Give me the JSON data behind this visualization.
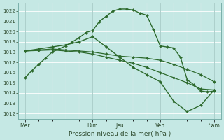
{
  "xlabel": "Pression niveau de la mer( hPa )",
  "ylim": [
    1011.5,
    1022.8
  ],
  "yticks": [
    1012,
    1013,
    1014,
    1015,
    1016,
    1017,
    1018,
    1019,
    1020,
    1021,
    1022
  ],
  "xtick_labels": [
    "Mer",
    "",
    "Dim",
    "Jeu",
    "",
    "Ven",
    "",
    "Sam"
  ],
  "xtick_major_labels": [
    "Mer",
    "Dim",
    "Jeu",
    "Ven",
    "Sam"
  ],
  "xtick_major_positions": [
    0,
    5,
    7,
    10,
    14
  ],
  "bg_color": "#c5e8e4",
  "grid_color": "#ffffff",
  "line_color": "#2d6a2d",
  "series1_x": [
    0,
    0.5,
    1,
    1.5,
    2,
    2.5,
    3,
    3.5,
    4,
    4.5,
    5,
    5.5,
    6,
    6.5,
    7,
    7.5,
    8,
    8.5,
    9,
    9.5,
    10,
    10.5,
    11,
    11.5,
    12,
    12.5,
    13,
    13.5,
    14
  ],
  "series1_y": [
    1015.5,
    1016.2,
    1016.8,
    1017.4,
    1018.0,
    1018.3,
    1018.6,
    1019.0,
    1019.4,
    1019.9,
    1020.1,
    1021.0,
    1021.5,
    1022.0,
    1022.2,
    1022.2,
    1022.1,
    1021.8,
    1021.6,
    1020.2,
    1018.6,
    1018.5,
    1018.4,
    1017.5,
    1015.3,
    1014.8,
    1014.2,
    1014.1,
    1014.2
  ],
  "series2_x": [
    0,
    1,
    2,
    3,
    4,
    5,
    6,
    7,
    8,
    9,
    10,
    11,
    12,
    13,
    14
  ],
  "series2_y": [
    1018.1,
    1018.2,
    1018.3,
    1018.2,
    1018.1,
    1018.0,
    1017.8,
    1017.6,
    1017.5,
    1017.4,
    1017.2,
    1016.8,
    1016.3,
    1015.8,
    1015.1
  ],
  "series3_x": [
    0,
    1,
    2,
    3,
    4,
    5,
    6,
    7,
    8,
    9,
    10,
    11,
    12,
    13,
    14
  ],
  "series3_y": [
    1018.1,
    1018.15,
    1018.2,
    1018.1,
    1018.0,
    1017.8,
    1017.5,
    1017.2,
    1016.9,
    1016.5,
    1016.0,
    1015.5,
    1015.0,
    1014.4,
    1014.3
  ],
  "series4_x": [
    0,
    1,
    2,
    3,
    4,
    5,
    6,
    7,
    8,
    9,
    10,
    11,
    12,
    13,
    14
  ],
  "series4_y": [
    1018.1,
    1018.3,
    1018.5,
    1018.7,
    1019.0,
    1019.5,
    1018.5,
    1017.5,
    1016.5,
    1015.8,
    1015.1,
    1013.2,
    1012.2,
    1012.8,
    1014.3
  ]
}
